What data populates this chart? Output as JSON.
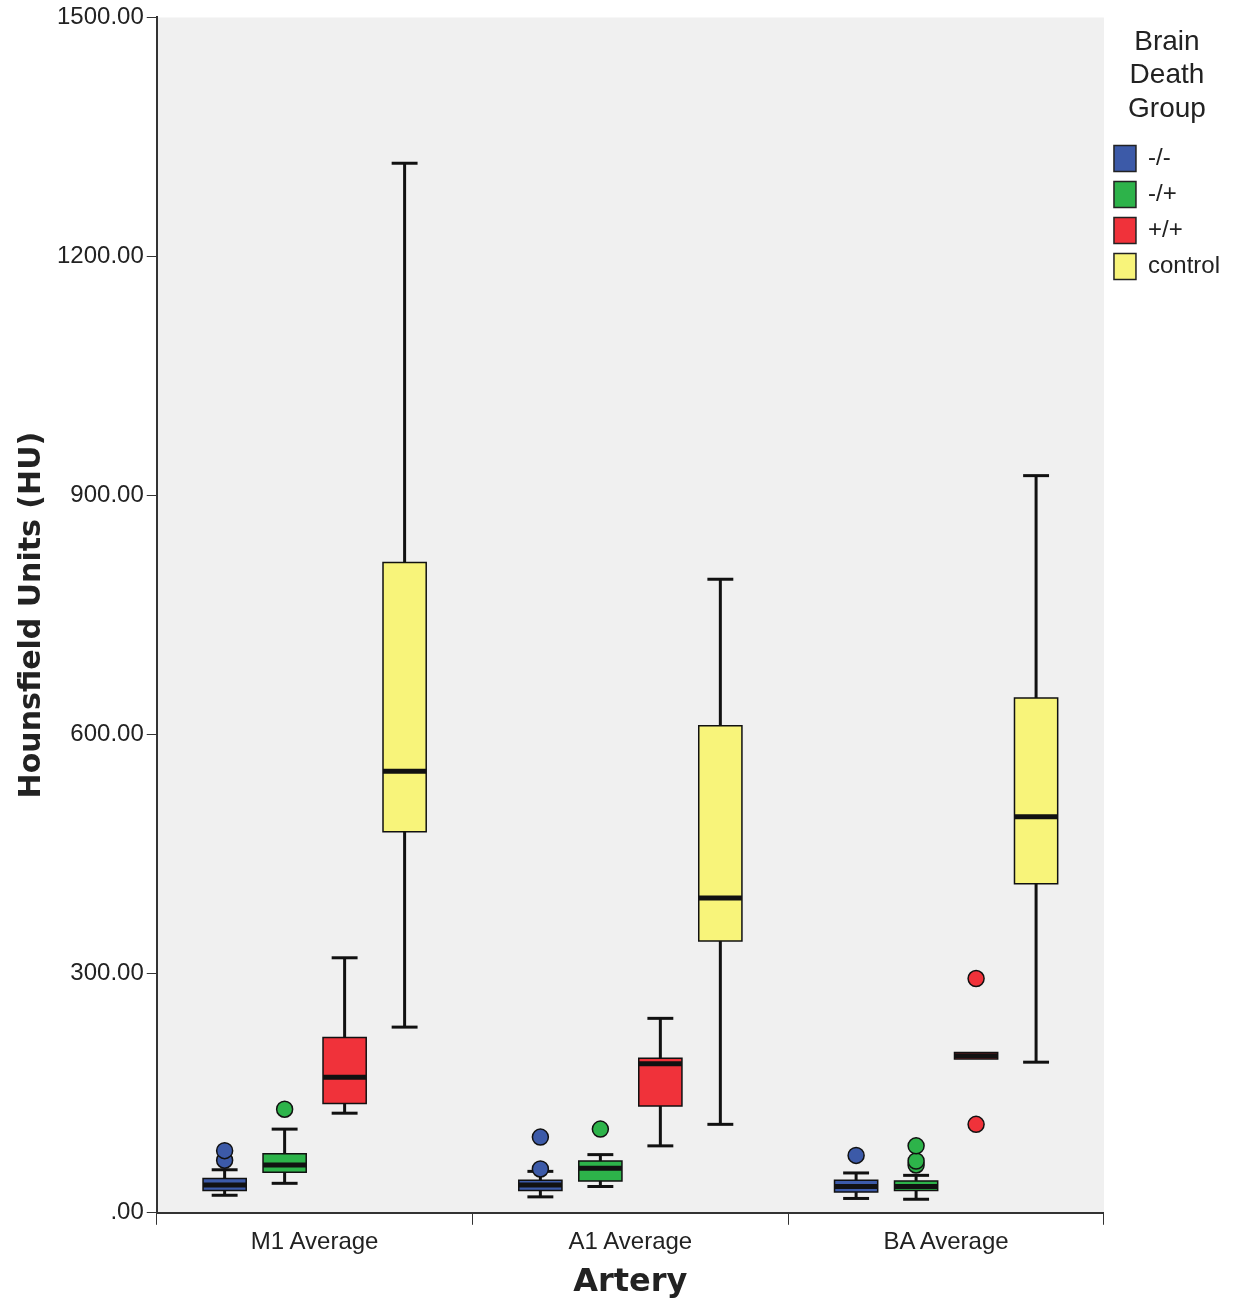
{
  "chart_data": {
    "type": "box",
    "xlabel": "Artery",
    "ylabel": "Hounsfield Units (HU)",
    "legend_title": "Brain Death Group",
    "legend": "top right",
    "grid": false,
    "categories": [
      "M1 Average",
      "A1 Average",
      "BA Average"
    ],
    "ylim": [
      0,
      1500
    ],
    "yticks": [
      {
        "value": 0,
        "label": ".00"
      },
      {
        "value": 300,
        "label": "300.00"
      },
      {
        "value": 600,
        "label": "600.00"
      },
      {
        "value": 900,
        "label": "900.00"
      },
      {
        "value": 1200,
        "label": "1200.00"
      },
      {
        "value": 1500,
        "label": "1500.00"
      }
    ],
    "series": [
      {
        "name": "-/-",
        "color": "#3c5aa8",
        "boxes": [
          {
            "low": 22,
            "q1": 28,
            "median": 35,
            "q3": 43,
            "high": 54,
            "outliers": [
              66,
              78
            ]
          },
          {
            "low": 20,
            "q1": 28,
            "median": 35,
            "q3": 41,
            "high": 52,
            "outliers": [
              55,
              95
            ]
          },
          {
            "low": 18,
            "q1": 26,
            "median": 33,
            "q3": 41,
            "high": 50,
            "outliers": [
              72
            ]
          }
        ]
      },
      {
        "name": "-/+",
        "color": "#2db34a",
        "boxes": [
          {
            "low": 37,
            "q1": 51,
            "median": 60,
            "q3": 74,
            "high": 105,
            "outliers": [
              130
            ]
          },
          {
            "low": 33,
            "q1": 40,
            "median": 56,
            "q3": 65,
            "high": 73,
            "outliers": [
              105
            ]
          },
          {
            "low": 17,
            "q1": 28,
            "median": 33,
            "q3": 40,
            "high": 47,
            "outliers": [
              60,
              65,
              84
            ]
          }
        ]
      },
      {
        "name": "+/+",
        "color": "#f0323a",
        "boxes": [
          {
            "low": 125,
            "q1": 137,
            "median": 170,
            "q3": 220,
            "high": 320
          },
          {
            "low": 84,
            "q1": 134,
            "median": 187,
            "q3": 194,
            "high": 244
          },
          {
            "low": 193,
            "q1": 193,
            "median": 197,
            "q3": 201,
            "high": 201,
            "outliers": [
              111,
              294
            ]
          }
        ]
      },
      {
        "name": "control",
        "color": "#f8f47a",
        "boxes": [
          {
            "low": 233,
            "q1": 478,
            "median": 554,
            "q3": 816,
            "high": 1317
          },
          {
            "low": 111,
            "q1": 341,
            "median": 395,
            "q3": 611,
            "high": 795
          },
          {
            "low": 189,
            "q1": 413,
            "median": 497,
            "q3": 646,
            "high": 925
          }
        ]
      }
    ]
  }
}
